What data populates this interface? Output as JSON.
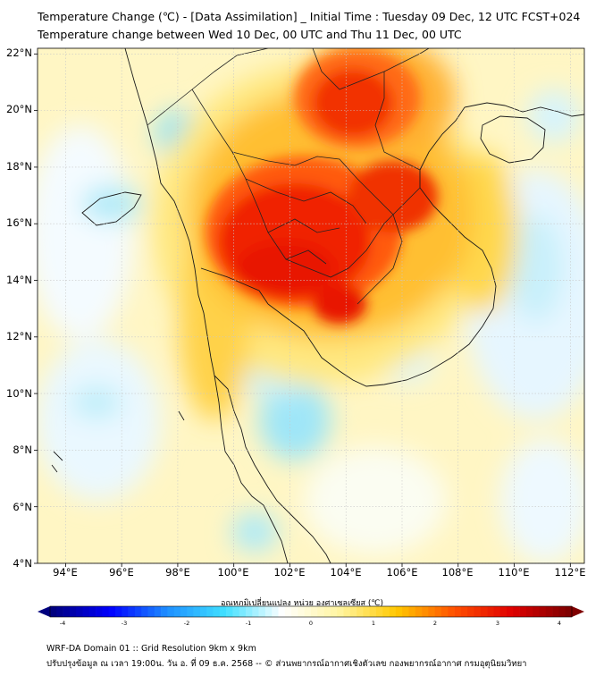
{
  "header": {
    "title_line1": "Temperature Change (℃) - [Data Assimilation] _ Initial Time : Tuesday 09 Dec, 12 UTC FCST+024",
    "title_line2": "Temperature change between Wed 10 Dec, 00 UTC and Thu 11 Dec, 00 UTC"
  },
  "map": {
    "lat_labels": [
      "22°N",
      "20°N",
      "18°N",
      "16°N",
      "14°N",
      "12°N",
      "10°N",
      "8°N",
      "6°N",
      "4°N"
    ],
    "lon_labels": [
      "94°E",
      "96°E",
      "98°E",
      "100°E",
      "102°E",
      "104°E",
      "106°E",
      "108°E",
      "110°E",
      "112°E"
    ],
    "lon_range": [
      93,
      112.5
    ],
    "lat_range": [
      4,
      22.2
    ]
  },
  "colorbar": {
    "title": "อุณหภูมิเปลี่ยนแปลง หน่วย องศาเซลเซียส (℃)",
    "ticks": [
      "-4",
      "-3",
      "-2",
      "-1",
      "0",
      "1",
      "2",
      "3",
      "4"
    ],
    "range": [
      -4,
      4
    ],
    "colors": [
      "#00007f",
      "#0000ff",
      "#1e90ff",
      "#40e0ff",
      "#ffffff",
      "#fff5a0",
      "#ffc800",
      "#ff5000",
      "#e00000",
      "#7f0000"
    ]
  },
  "footer": {
    "line1": "WRF-DA Domain 01 :: Grid Resolution 9km x 9km",
    "line2": "ปรับปรุงข้อมูล ณ เวลา 19:00น. วัน อ. ที่ 09 ธ.ค. 2568 -- © ส่วนพยากรณ์อากาศเชิงตัวเลข กองพยากรณ์อากาศ กรมอุตุนิยมวิทยา"
  }
}
